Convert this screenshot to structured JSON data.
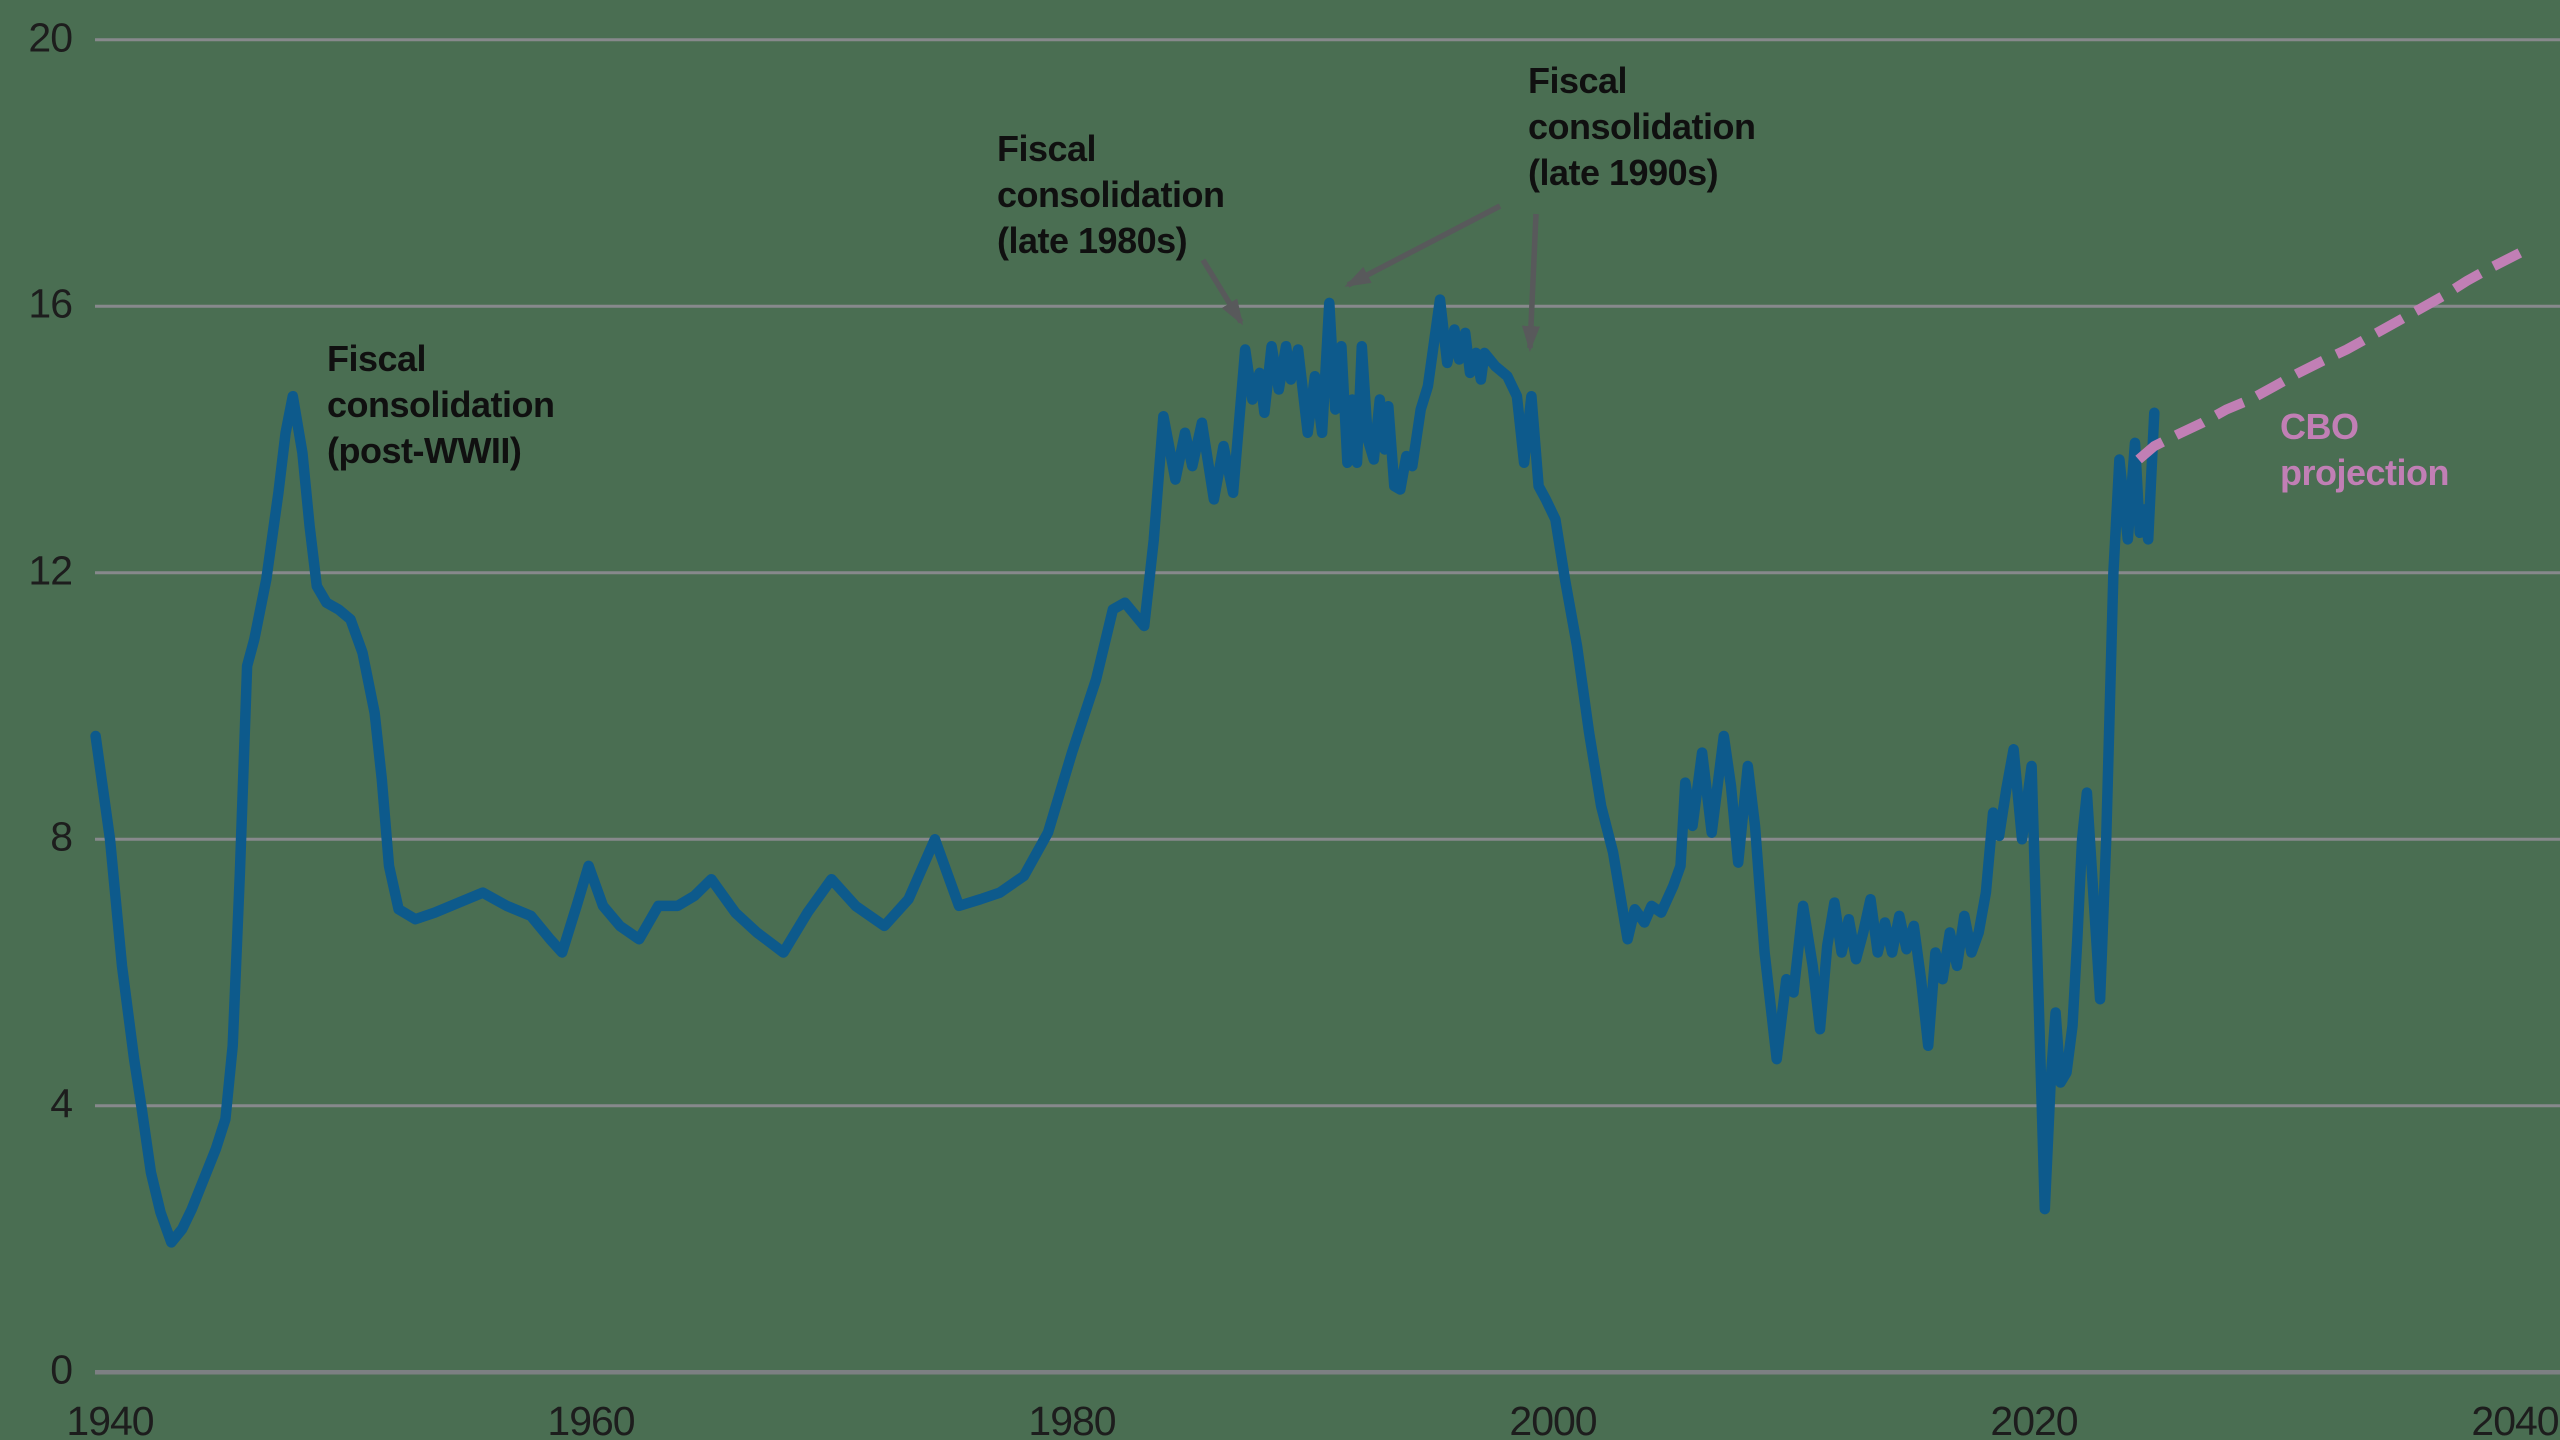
{
  "chart_data": {
    "type": "line",
    "title": "",
    "xlabel": "",
    "ylabel": "",
    "ylim": [
      0,
      20
    ],
    "xlim": [
      1939.4,
      2041
    ],
    "grid": true,
    "y_ticks_top_to_bottom": [
      "20",
      "16",
      "12",
      "8",
      "4",
      "0"
    ],
    "y_tick_values": [
      20,
      16,
      12,
      8,
      4,
      0
    ],
    "x_ticks": [
      "1940",
      "1960",
      "1980",
      "2000",
      "2020",
      "2040"
    ],
    "x_tick_years": [
      1940,
      1960,
      1980,
      2000,
      2020,
      2040
    ],
    "colors": {
      "history_line": "#0d5a8c",
      "projection_line": "#c17fb5",
      "gridline": "#87898c",
      "axis_line": "#7d8083",
      "tick_text": "#1d1d1d",
      "annotation_text": "#101010",
      "arrow": "#58595b",
      "background": "#4a6e52"
    },
    "series": [
      {
        "name": "history",
        "style": "solid",
        "points": [
          [
            1939.4,
            9.55
          ],
          [
            1940,
            8.0
          ],
          [
            1940.5,
            6.1
          ],
          [
            1941,
            4.7
          ],
          [
            1941.3,
            4.0
          ],
          [
            1941.7,
            3.0
          ],
          [
            1942.1,
            2.4
          ],
          [
            1942.55,
            1.95
          ],
          [
            1943,
            2.15
          ],
          [
            1943.4,
            2.45
          ],
          [
            1943.9,
            2.9
          ],
          [
            1944.4,
            3.35
          ],
          [
            1944.8,
            3.8
          ],
          [
            1945.1,
            4.9
          ],
          [
            1945.4,
            7.5
          ],
          [
            1945.7,
            10.6
          ],
          [
            1946,
            11.0
          ],
          [
            1946.5,
            11.9
          ],
          [
            1947,
            13.2
          ],
          [
            1947.3,
            14.1
          ],
          [
            1947.6,
            14.65
          ],
          [
            1948,
            13.8
          ],
          [
            1948.3,
            12.7
          ],
          [
            1948.6,
            11.8
          ],
          [
            1949,
            11.55
          ],
          [
            1949.5,
            11.45
          ],
          [
            1950,
            11.3
          ],
          [
            1950.5,
            10.8
          ],
          [
            1951,
            9.9
          ],
          [
            1951.3,
            8.9
          ],
          [
            1951.6,
            7.6
          ],
          [
            1952,
            6.95
          ],
          [
            1952.7,
            6.8
          ],
          [
            1953.5,
            6.9
          ],
          [
            1954.5,
            7.05
          ],
          [
            1955.5,
            7.2
          ],
          [
            1956.5,
            7.0
          ],
          [
            1957.5,
            6.85
          ],
          [
            1958.3,
            6.5
          ],
          [
            1958.8,
            6.3
          ],
          [
            1959.4,
            7.0
          ],
          [
            1959.9,
            7.6
          ],
          [
            1960.5,
            7.0
          ],
          [
            1961.2,
            6.7
          ],
          [
            1962,
            6.5
          ],
          [
            1962.8,
            7.0
          ],
          [
            1963.6,
            7.0
          ],
          [
            1964.3,
            7.15
          ],
          [
            1965,
            7.4
          ],
          [
            1966,
            6.9
          ],
          [
            1966.9,
            6.6
          ],
          [
            1968,
            6.3
          ],
          [
            1969,
            6.9
          ],
          [
            1970,
            7.4
          ],
          [
            1971,
            7.0
          ],
          [
            1972.2,
            6.7
          ],
          [
            1973.2,
            7.1
          ],
          [
            1974.3,
            8.0
          ],
          [
            1975.3,
            7.0
          ],
          [
            1976.2,
            7.1
          ],
          [
            1977,
            7.2
          ],
          [
            1978,
            7.45
          ],
          [
            1979,
            8.1
          ],
          [
            1980,
            9.3
          ],
          [
            1981,
            10.4
          ],
          [
            1981.7,
            11.45
          ],
          [
            1982.2,
            11.55
          ],
          [
            1983,
            11.2
          ],
          [
            1983.4,
            12.5
          ],
          [
            1983.8,
            14.35
          ],
          [
            1984.3,
            13.4
          ],
          [
            1984.7,
            14.1
          ],
          [
            1985,
            13.6
          ],
          [
            1985.4,
            14.25
          ],
          [
            1985.9,
            13.1
          ],
          [
            1986.3,
            13.9
          ],
          [
            1986.7,
            13.2
          ],
          [
            1987.2,
            15.35
          ],
          [
            1987.5,
            14.6
          ],
          [
            1987.8,
            15.0
          ],
          [
            1988,
            14.4
          ],
          [
            1988.3,
            15.4
          ],
          [
            1988.6,
            14.75
          ],
          [
            1988.9,
            15.4
          ],
          [
            1989.1,
            14.9
          ],
          [
            1989.4,
            15.35
          ],
          [
            1989.8,
            14.1
          ],
          [
            1990.1,
            14.95
          ],
          [
            1990.4,
            14.1
          ],
          [
            1990.7,
            16.05
          ],
          [
            1990.95,
            14.45
          ],
          [
            1991.2,
            15.4
          ],
          [
            1991.45,
            13.65
          ],
          [
            1991.65,
            14.6
          ],
          [
            1991.85,
            13.65
          ],
          [
            1992.05,
            15.4
          ],
          [
            1992.3,
            14.0
          ],
          [
            1992.55,
            13.7
          ],
          [
            1992.8,
            14.6
          ],
          [
            1993,
            13.85
          ],
          [
            1993.15,
            14.5
          ],
          [
            1993.4,
            13.3
          ],
          [
            1993.65,
            13.25
          ],
          [
            1993.9,
            13.75
          ],
          [
            1994.15,
            13.6
          ],
          [
            1994.5,
            14.45
          ],
          [
            1994.8,
            14.8
          ],
          [
            1995.3,
            16.1
          ],
          [
            1995.6,
            15.15
          ],
          [
            1995.9,
            15.65
          ],
          [
            1996.1,
            15.2
          ],
          [
            1996.35,
            15.6
          ],
          [
            1996.55,
            15.0
          ],
          [
            1996.8,
            15.3
          ],
          [
            1997,
            14.9
          ],
          [
            1997.15,
            15.3
          ],
          [
            1997.6,
            15.1
          ],
          [
            1998.1,
            14.95
          ],
          [
            1998.5,
            14.65
          ],
          [
            1998.8,
            13.65
          ],
          [
            1999.1,
            14.65
          ],
          [
            1999.4,
            13.3
          ],
          [
            1999.7,
            13.1
          ],
          [
            2000.1,
            12.8
          ],
          [
            2000.5,
            11.9
          ],
          [
            2001,
            10.9
          ],
          [
            2001.5,
            9.6
          ],
          [
            2002,
            8.5
          ],
          [
            2002.5,
            7.8
          ],
          [
            2003.1,
            6.5
          ],
          [
            2003.4,
            6.95
          ],
          [
            2003.8,
            6.75
          ],
          [
            2004.1,
            7.0
          ],
          [
            2004.5,
            6.9
          ],
          [
            2005,
            7.3
          ],
          [
            2005.3,
            7.6
          ],
          [
            2005.5,
            8.85
          ],
          [
            2005.8,
            8.2
          ],
          [
            2006.2,
            9.3
          ],
          [
            2006.6,
            8.1
          ],
          [
            2007.1,
            9.55
          ],
          [
            2007.4,
            8.8
          ],
          [
            2007.7,
            7.65
          ],
          [
            2008.1,
            9.1
          ],
          [
            2008.4,
            8.2
          ],
          [
            2008.8,
            6.3
          ],
          [
            2009.3,
            4.7
          ],
          [
            2009.7,
            5.9
          ],
          [
            2010,
            5.7
          ],
          [
            2010.4,
            7.0
          ],
          [
            2010.8,
            6.1
          ],
          [
            2011.1,
            5.15
          ],
          [
            2011.4,
            6.4
          ],
          [
            2011.7,
            7.05
          ],
          [
            2012,
            6.3
          ],
          [
            2012.3,
            6.8
          ],
          [
            2012.6,
            6.2
          ],
          [
            2012.9,
            6.6
          ],
          [
            2013.2,
            7.1
          ],
          [
            2013.5,
            6.3
          ],
          [
            2013.8,
            6.75
          ],
          [
            2014.1,
            6.3
          ],
          [
            2014.4,
            6.85
          ],
          [
            2014.7,
            6.35
          ],
          [
            2015,
            6.7
          ],
          [
            2015.3,
            5.9
          ],
          [
            2015.6,
            4.9
          ],
          [
            2015.9,
            6.3
          ],
          [
            2016.2,
            5.9
          ],
          [
            2016.5,
            6.6
          ],
          [
            2016.8,
            6.1
          ],
          [
            2017.1,
            6.85
          ],
          [
            2017.4,
            6.3
          ],
          [
            2017.7,
            6.6
          ],
          [
            2018,
            7.2
          ],
          [
            2018.3,
            8.4
          ],
          [
            2018.55,
            8.05
          ],
          [
            2018.85,
            8.75
          ],
          [
            2019.15,
            9.35
          ],
          [
            2019.5,
            8.0
          ],
          [
            2019.9,
            9.1
          ],
          [
            2020.2,
            5.5
          ],
          [
            2020.45,
            2.45
          ],
          [
            2020.7,
            4.4
          ],
          [
            2020.9,
            5.4
          ],
          [
            2021.1,
            4.35
          ],
          [
            2021.35,
            4.5
          ],
          [
            2021.6,
            5.2
          ],
          [
            2021.8,
            6.5
          ],
          [
            2022,
            8.0
          ],
          [
            2022.2,
            8.7
          ],
          [
            2022.5,
            7.0
          ],
          [
            2022.75,
            5.6
          ],
          [
            2023,
            8.0
          ],
          [
            2023.3,
            12.0
          ],
          [
            2023.55,
            13.7
          ],
          [
            2023.9,
            12.5
          ],
          [
            2024.2,
            13.95
          ],
          [
            2024.4,
            12.6
          ],
          [
            2024.6,
            12.95
          ],
          [
            2024.75,
            12.5
          ],
          [
            2025,
            14.4
          ]
        ]
      },
      {
        "name": "CBO projection",
        "style": "dashed",
        "points": [
          [
            2024.35,
            13.7
          ],
          [
            2025,
            13.9
          ],
          [
            2026,
            14.08
          ],
          [
            2027,
            14.25
          ],
          [
            2028,
            14.45
          ],
          [
            2029,
            14.6
          ],
          [
            2030,
            14.8
          ],
          [
            2031,
            15.0
          ],
          [
            2032,
            15.18
          ],
          [
            2033,
            15.35
          ],
          [
            2034,
            15.55
          ],
          [
            2035,
            15.75
          ],
          [
            2036,
            15.95
          ],
          [
            2037,
            16.15
          ],
          [
            2038,
            16.38
          ],
          [
            2039,
            16.58
          ],
          [
            2040.2,
            16.8
          ]
        ]
      }
    ],
    "annotations": [
      {
        "id": "post-wwii",
        "lines": [
          "Fiscal",
          "consolidation",
          "(post-WWII)"
        ]
      },
      {
        "id": "late-1980s",
        "lines": [
          "Fiscal",
          "consolidation",
          "(late 1980s)"
        ]
      },
      {
        "id": "late-1990s",
        "lines": [
          "Fiscal",
          "consolidation",
          "(late 1990s)"
        ]
      },
      {
        "id": "cbo-projection",
        "lines": [
          "CBO",
          "projection"
        ]
      }
    ]
  }
}
